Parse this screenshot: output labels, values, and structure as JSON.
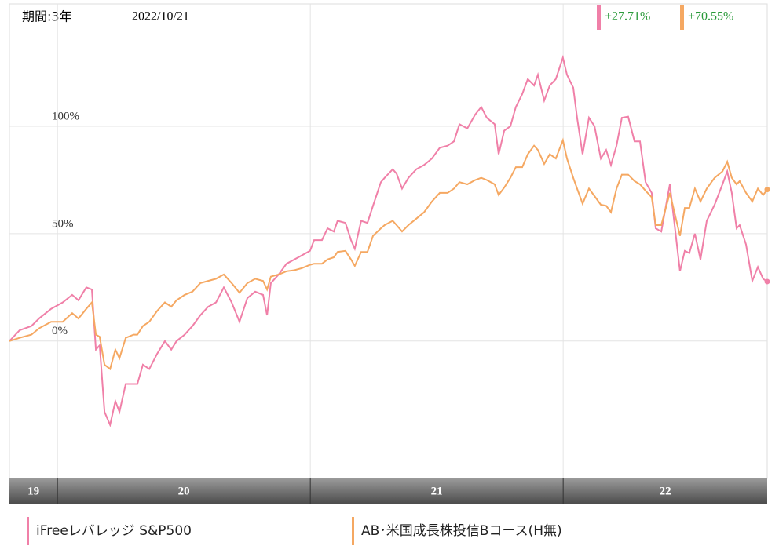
{
  "chart_data": {
    "type": "line",
    "period": "期間:3年",
    "date": "2022/10/21",
    "x": [
      2019.81,
      2019.85,
      2019.897,
      2019.928,
      2019.975,
      2020.021,
      2020.058,
      2020.083,
      2020.114,
      2020.136,
      2020.152,
      2020.167,
      2020.186,
      2020.208,
      2020.229,
      2020.245,
      2020.27,
      2020.301,
      2020.316,
      2020.338,
      2020.363,
      2020.394,
      2020.425,
      2020.45,
      2020.471,
      2020.503,
      2020.534,
      2020.565,
      2020.596,
      2020.627,
      2020.658,
      2020.689,
      2020.72,
      2020.751,
      2020.782,
      2020.813,
      2020.829,
      2020.844,
      2020.875,
      2020.906,
      2020.937,
      2020.968,
      2020.999,
      2021.015,
      2021.046,
      2021.068,
      2021.093,
      2021.108,
      2021.139,
      2021.161,
      2021.176,
      2021.201,
      2021.226,
      2021.248,
      2021.279,
      2021.294,
      2021.326,
      2021.341,
      2021.363,
      2021.388,
      2021.419,
      2021.45,
      2021.481,
      2021.512,
      2021.543,
      2021.568,
      2021.59,
      2021.621,
      2021.652,
      2021.676,
      2021.698,
      2021.729,
      2021.745,
      2021.767,
      2021.791,
      2021.813,
      2021.838,
      2021.86,
      2021.885,
      2021.9,
      2021.925,
      2021.947,
      2021.971,
      2021.999,
      2022.015,
      2022.04,
      2022.055,
      2022.077,
      2022.102,
      2022.124,
      2022.149,
      2022.17,
      2022.189,
      2022.211,
      2022.232,
      2022.257,
      2022.282,
      2022.304,
      2022.326,
      2022.35,
      2022.366,
      2022.388,
      2022.422,
      2022.462,
      2022.481,
      2022.499,
      2022.521,
      2022.543,
      2022.568,
      2022.599,
      2022.63,
      2022.649,
      2022.667,
      2022.686,
      2022.698,
      2022.723,
      2022.748,
      2022.77,
      2022.791,
      2022.807
    ],
    "series": [
      {
        "name": "iFreeレバレッジ S&P500",
        "color": "#f080a8",
        "end_label": "+27.71%",
        "values": [
          0,
          5,
          7,
          10.6,
          15,
          18,
          21.5,
          19,
          25,
          24,
          -4,
          -2,
          -33,
          -39,
          -28,
          -33,
          -20,
          -20,
          -20,
          -11,
          -13,
          -6,
          0,
          -4,
          0,
          3,
          7,
          12,
          16,
          18,
          25,
          18,
          9,
          20,
          23,
          21.5,
          12,
          27,
          31,
          36,
          38,
          40,
          42,
          47,
          47,
          52.5,
          51,
          56,
          55,
          47,
          43,
          56,
          55,
          63,
          74,
          76,
          80,
          78,
          71,
          76,
          80,
          82,
          85,
          90,
          91,
          93,
          101,
          99,
          105.5,
          109,
          104,
          101,
          87,
          98,
          100,
          109,
          115,
          122,
          119,
          124,
          112,
          119,
          122,
          132,
          124,
          118,
          104,
          87,
          104,
          100,
          85,
          89,
          82,
          91,
          104,
          104.5,
          93,
          93,
          74,
          69,
          52.5,
          51,
          73,
          32.5,
          42,
          41,
          50,
          38,
          56,
          63.5,
          73,
          79,
          69,
          52.5,
          54,
          45,
          28,
          34.5,
          29,
          27.71
        ]
      },
      {
        "name": "AB･米国成長株投信Bコース(H無)",
        "color": "#f5a862",
        "end_label": "+70.55%",
        "values": [
          0,
          1.5,
          3,
          6,
          9,
          9,
          13,
          10.5,
          15,
          18,
          3,
          2,
          -11,
          -13,
          -4,
          -8,
          1.5,
          3,
          3,
          7,
          9,
          14,
          18,
          16,
          19,
          21.5,
          23,
          27,
          28,
          29,
          31,
          27,
          22.5,
          27,
          29,
          28,
          24,
          30,
          31,
          32.5,
          33,
          34,
          35.5,
          36,
          36,
          38,
          39,
          41.5,
          42,
          38,
          35,
          41.5,
          41.5,
          49,
          52.5,
          54,
          56,
          54,
          51,
          54,
          57,
          60,
          65,
          69,
          69,
          71,
          74,
          73,
          75,
          76,
          75,
          73,
          68,
          71.5,
          76,
          81,
          81,
          87,
          91,
          89,
          82.5,
          87,
          85,
          93.5,
          85,
          76,
          71,
          64,
          71,
          67.5,
          63.5,
          63,
          60,
          71,
          77.5,
          77.5,
          74.5,
          73,
          70,
          67,
          54,
          54,
          69,
          49,
          62,
          62,
          71,
          65,
          71,
          76,
          79,
          83.5,
          76,
          73,
          74.5,
          69,
          65,
          71,
          68,
          70.55
        ]
      }
    ],
    "xlim": [
      2019.81,
      2022.807
    ],
    "xticks": [
      {
        "value": 2019,
        "label": "19"
      },
      {
        "value": 2020,
        "label": "20"
      },
      {
        "value": 2021,
        "label": "21"
      },
      {
        "value": 2022,
        "label": "22"
      }
    ],
    "ylim": [
      -64,
      157
    ],
    "yticks": [
      {
        "value": 0,
        "label": "0%"
      },
      {
        "value": 50,
        "label": "50%"
      },
      {
        "value": 100,
        "label": "100%"
      }
    ],
    "grid": true
  }
}
